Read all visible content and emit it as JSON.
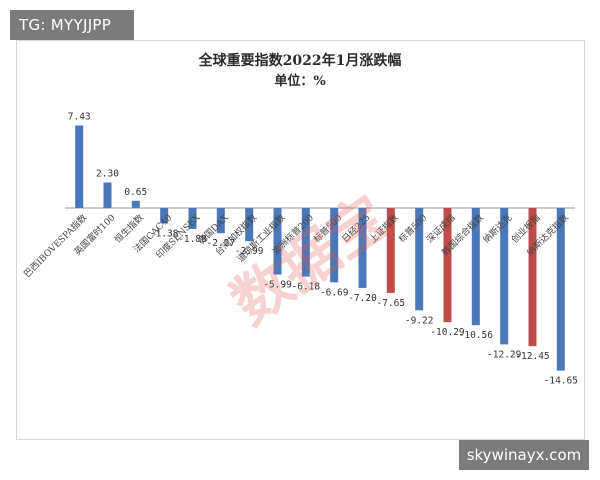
{
  "watermarks": {
    "top": "TG: MYYJJPP",
    "bottom": "skywinayx.com"
  },
  "stamp_text": "数据宝",
  "colors": {
    "positive": "#4a78b8",
    "negative_blue": "#4a78b8",
    "highlight_red": "#c04b4b",
    "axis": "#9a9a9a"
  },
  "chart_data": {
    "type": "bar",
    "title": "全球重要指数2022年1月涨跌幅",
    "subtitle": "单位：%",
    "categories": [
      "巴西IBOVESPA指数",
      "英国富时100",
      "恒生指数",
      "法国CAC40",
      "印度SENSEX",
      "德国DAX",
      "台湾加权指数",
      "道琼斯工业指数",
      "澳洲标普200",
      "标普500",
      "日经225",
      "上证指数",
      "标普500",
      "深证成指",
      "韩国综合指数",
      "纳斯达克",
      "创业板指",
      "纳斯达克指数"
    ],
    "values": [
      7.43,
      2.3,
      0.65,
      -1.38,
      -1.88,
      -2.27,
      -2.99,
      -5.99,
      -6.18,
      -6.69,
      -7.2,
      -7.65,
      -9.22,
      -10.29,
      -10.56,
      -12.29,
      -12.45,
      -14.65
    ],
    "value_labels": [
      "7.43",
      "2.30",
      "0.65",
      "-1.38",
      "-1.88",
      "-2.27",
      "-2.99",
      "-5.99",
      "-6.18",
      "-6.69",
      "-7.20",
      "-7.65",
      "-9.22",
      "-10.29",
      "-10.56",
      "-12.29",
      "-12.45",
      "-14.65"
    ],
    "bar_colors": [
      "blue",
      "blue",
      "blue",
      "blue",
      "blue",
      "blue",
      "blue",
      "blue",
      "blue",
      "blue",
      "blue",
      "red",
      "blue",
      "red",
      "blue",
      "blue",
      "red",
      "blue"
    ],
    "ylim": [
      -16,
      9
    ],
    "grid": false,
    "legend": "none"
  }
}
